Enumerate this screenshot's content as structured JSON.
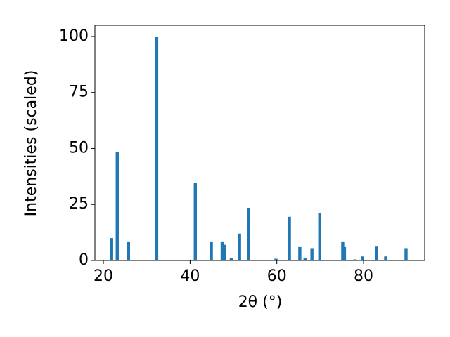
{
  "chart_data": {
    "type": "bar",
    "x_label": "2θ (°)",
    "y_label": "Intensities (scaled)",
    "x": [
      21.9,
      23.2,
      25.8,
      32.3,
      41.2,
      44.9,
      47.4,
      48.0,
      49.5,
      51.4,
      53.5,
      59.8,
      62.9,
      65.3,
      66.5,
      68.1,
      69.9,
      75.2,
      75.6,
      78.0,
      79.8,
      83.0,
      85.1,
      89.8
    ],
    "values": [
      10,
      48.5,
      8.5,
      100,
      34.5,
      8.5,
      8.5,
      7,
      1.2,
      12,
      23.5,
      0.8,
      19.5,
      6,
      1.2,
      5.5,
      21,
      8.5,
      6,
      0.5,
      1.8,
      6.2,
      1.8,
      5.5
    ],
    "color": "#1f77b4",
    "xlim": [
      18.05,
      94.1
    ],
    "xticks": [
      20,
      40,
      60,
      80
    ],
    "ylim": [
      0,
      105
    ],
    "yticks": [
      0,
      25,
      50,
      75,
      100
    ],
    "grid": false
  }
}
